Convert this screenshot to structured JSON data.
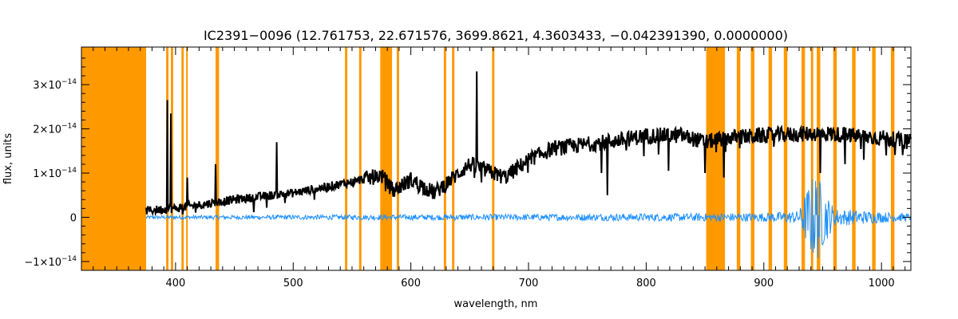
{
  "chart_data": {
    "type": "line",
    "title": "IC2391−0096    (12.761753, 22.671576, 3699.8621, 4.3603433, −0.042391390, 0.0000000)",
    "xlabel": "wavelength, nm",
    "ylabel": "flux, units",
    "xlim": [
      320,
      1025
    ],
    "ylim": [
      -1.2e-14,
      3.85e-14
    ],
    "x_ticks": [
      {
        "value": 400,
        "label": "400"
      },
      {
        "value": 500,
        "label": "500"
      },
      {
        "value": 600,
        "label": "600"
      },
      {
        "value": 700,
        "label": "700"
      },
      {
        "value": 800,
        "label": "800"
      },
      {
        "value": 900,
        "label": "900"
      },
      {
        "value": 1000,
        "label": "1000"
      }
    ],
    "y_ticks": [
      {
        "value": -1e-14,
        "mant": "−1×10",
        "exp": "−14"
      },
      {
        "value": 0,
        "mant": "0",
        "exp": ""
      },
      {
        "value": 1e-14,
        "mant": "1×10",
        "exp": "−14"
      },
      {
        "value": 2e-14,
        "mant": "2×10",
        "exp": "−14"
      },
      {
        "value": 3e-14,
        "mant": "3×10",
        "exp": "−14"
      }
    ],
    "masked_regions_nm": [
      [
        320,
        375
      ],
      [
        392,
        394
      ],
      [
        396,
        398
      ],
      [
        405,
        407
      ],
      [
        409,
        410
      ],
      [
        434,
        437
      ],
      [
        544,
        546
      ],
      [
        556,
        558
      ],
      [
        574,
        584
      ],
      [
        588,
        590
      ],
      [
        628,
        630
      ],
      [
        635,
        637
      ],
      [
        669,
        671
      ],
      [
        851,
        867
      ],
      [
        877,
        880
      ],
      [
        889,
        892
      ],
      [
        904,
        907
      ],
      [
        917,
        920
      ],
      [
        932,
        935
      ],
      [
        940,
        942
      ],
      [
        945,
        948
      ],
      [
        959,
        962
      ],
      [
        975,
        978
      ],
      [
        992,
        995
      ],
      [
        1008,
        1011
      ]
    ],
    "series": [
      {
        "color": "#000000",
        "continuum": [
          [
            375,
            1.5e-15
          ],
          [
            400,
            2e-15
          ],
          [
            450,
            4e-15
          ],
          [
            500,
            5.5e-15
          ],
          [
            550,
            8e-15
          ],
          [
            575,
            9.5e-15
          ],
          [
            585,
            6e-15
          ],
          [
            600,
            8.5e-15
          ],
          [
            620,
            5.5e-15
          ],
          [
            650,
            1.2e-14
          ],
          [
            680,
            9e-15
          ],
          [
            700,
            1.3e-14
          ],
          [
            720,
            1.55e-14
          ],
          [
            750,
            1.65e-14
          ],
          [
            780,
            1.75e-14
          ],
          [
            800,
            1.85e-14
          ],
          [
            830,
            1.85e-14
          ],
          [
            850,
            1.7e-14
          ],
          [
            870,
            1.8e-14
          ],
          [
            900,
            1.85e-14
          ],
          [
            950,
            1.9e-14
          ],
          [
            1000,
            1.8e-14
          ],
          [
            1025,
            1.7e-14
          ]
        ],
        "features": [
          [
            393,
            2.65e-14
          ],
          [
            396,
            2.35e-14
          ],
          [
            410,
            9e-15
          ],
          [
            434,
            1.2e-14
          ],
          [
            486,
            1.7e-14
          ],
          [
            656,
            3.3e-14
          ],
          [
            767,
            5e-15
          ],
          [
            762,
            1e-14
          ],
          [
            819,
            1.05e-14
          ],
          [
            850,
            1e-14
          ],
          [
            866,
            9e-15
          ],
          [
            948,
            1e-14
          ],
          [
            969,
            1.2e-14
          ],
          [
            985,
            1.3e-14
          ],
          [
            1004,
            1.4e-14
          ]
        ]
      },
      {
        "color": "#1e90ff",
        "noise": [
          [
            375,
            4e-16
          ],
          [
            760,
            8e-16
          ],
          [
            900,
            1e-15
          ],
          [
            930,
            1.5e-15
          ],
          [
            940,
            9e-15
          ],
          [
            945,
            1.05e-14
          ],
          [
            950,
            7e-15
          ],
          [
            960,
            2e-15
          ],
          [
            1025,
            8e-16
          ]
        ]
      }
    ],
    "mask_color": "#ff9900",
    "grid": false
  }
}
